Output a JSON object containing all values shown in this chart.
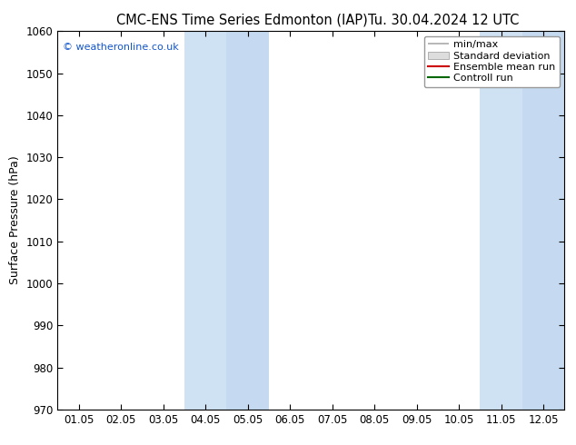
{
  "title_left": "CMC-ENS Time Series Edmonton (IAP)",
  "title_right": "Tu. 30.04.2024 12 UTC",
  "ylabel": "Surface Pressure (hPa)",
  "ylim": [
    970,
    1060
  ],
  "yticks": [
    970,
    980,
    990,
    1000,
    1010,
    1020,
    1030,
    1040,
    1050,
    1060
  ],
  "xtick_labels": [
    "01.05",
    "02.05",
    "03.05",
    "04.05",
    "05.05",
    "06.05",
    "07.05",
    "08.05",
    "09.05",
    "10.05",
    "11.05",
    "12.05"
  ],
  "shade_regions": [
    {
      "xstart": 3,
      "xend": 5,
      "color": "#cfe2f3"
    },
    {
      "xstart": 4,
      "xend": 5,
      "color": "#c5daf0"
    },
    {
      "xstart": 10,
      "xend": 11,
      "color": "#cfe2f3"
    },
    {
      "xstart": 11,
      "xend": 12,
      "color": "#c5daf0"
    }
  ],
  "watermark": "© weatheronline.co.uk",
  "watermark_color": "#1155cc",
  "legend_items": [
    {
      "label": "min/max",
      "color": "#aaaaaa",
      "type": "minmax"
    },
    {
      "label": "Standard deviation",
      "color": "#cccccc",
      "type": "stddev"
    },
    {
      "label": "Ensemble mean run",
      "color": "#cc0000",
      "type": "line"
    },
    {
      "label": "Controll run",
      "color": "#006600",
      "type": "line"
    }
  ],
  "bg_color": "#ffffff",
  "plot_bg_color": "#ffffff",
  "border_color": "#000000",
  "title_fontsize": 10.5,
  "tick_fontsize": 8.5,
  "ylabel_fontsize": 9,
  "legend_fontsize": 8
}
